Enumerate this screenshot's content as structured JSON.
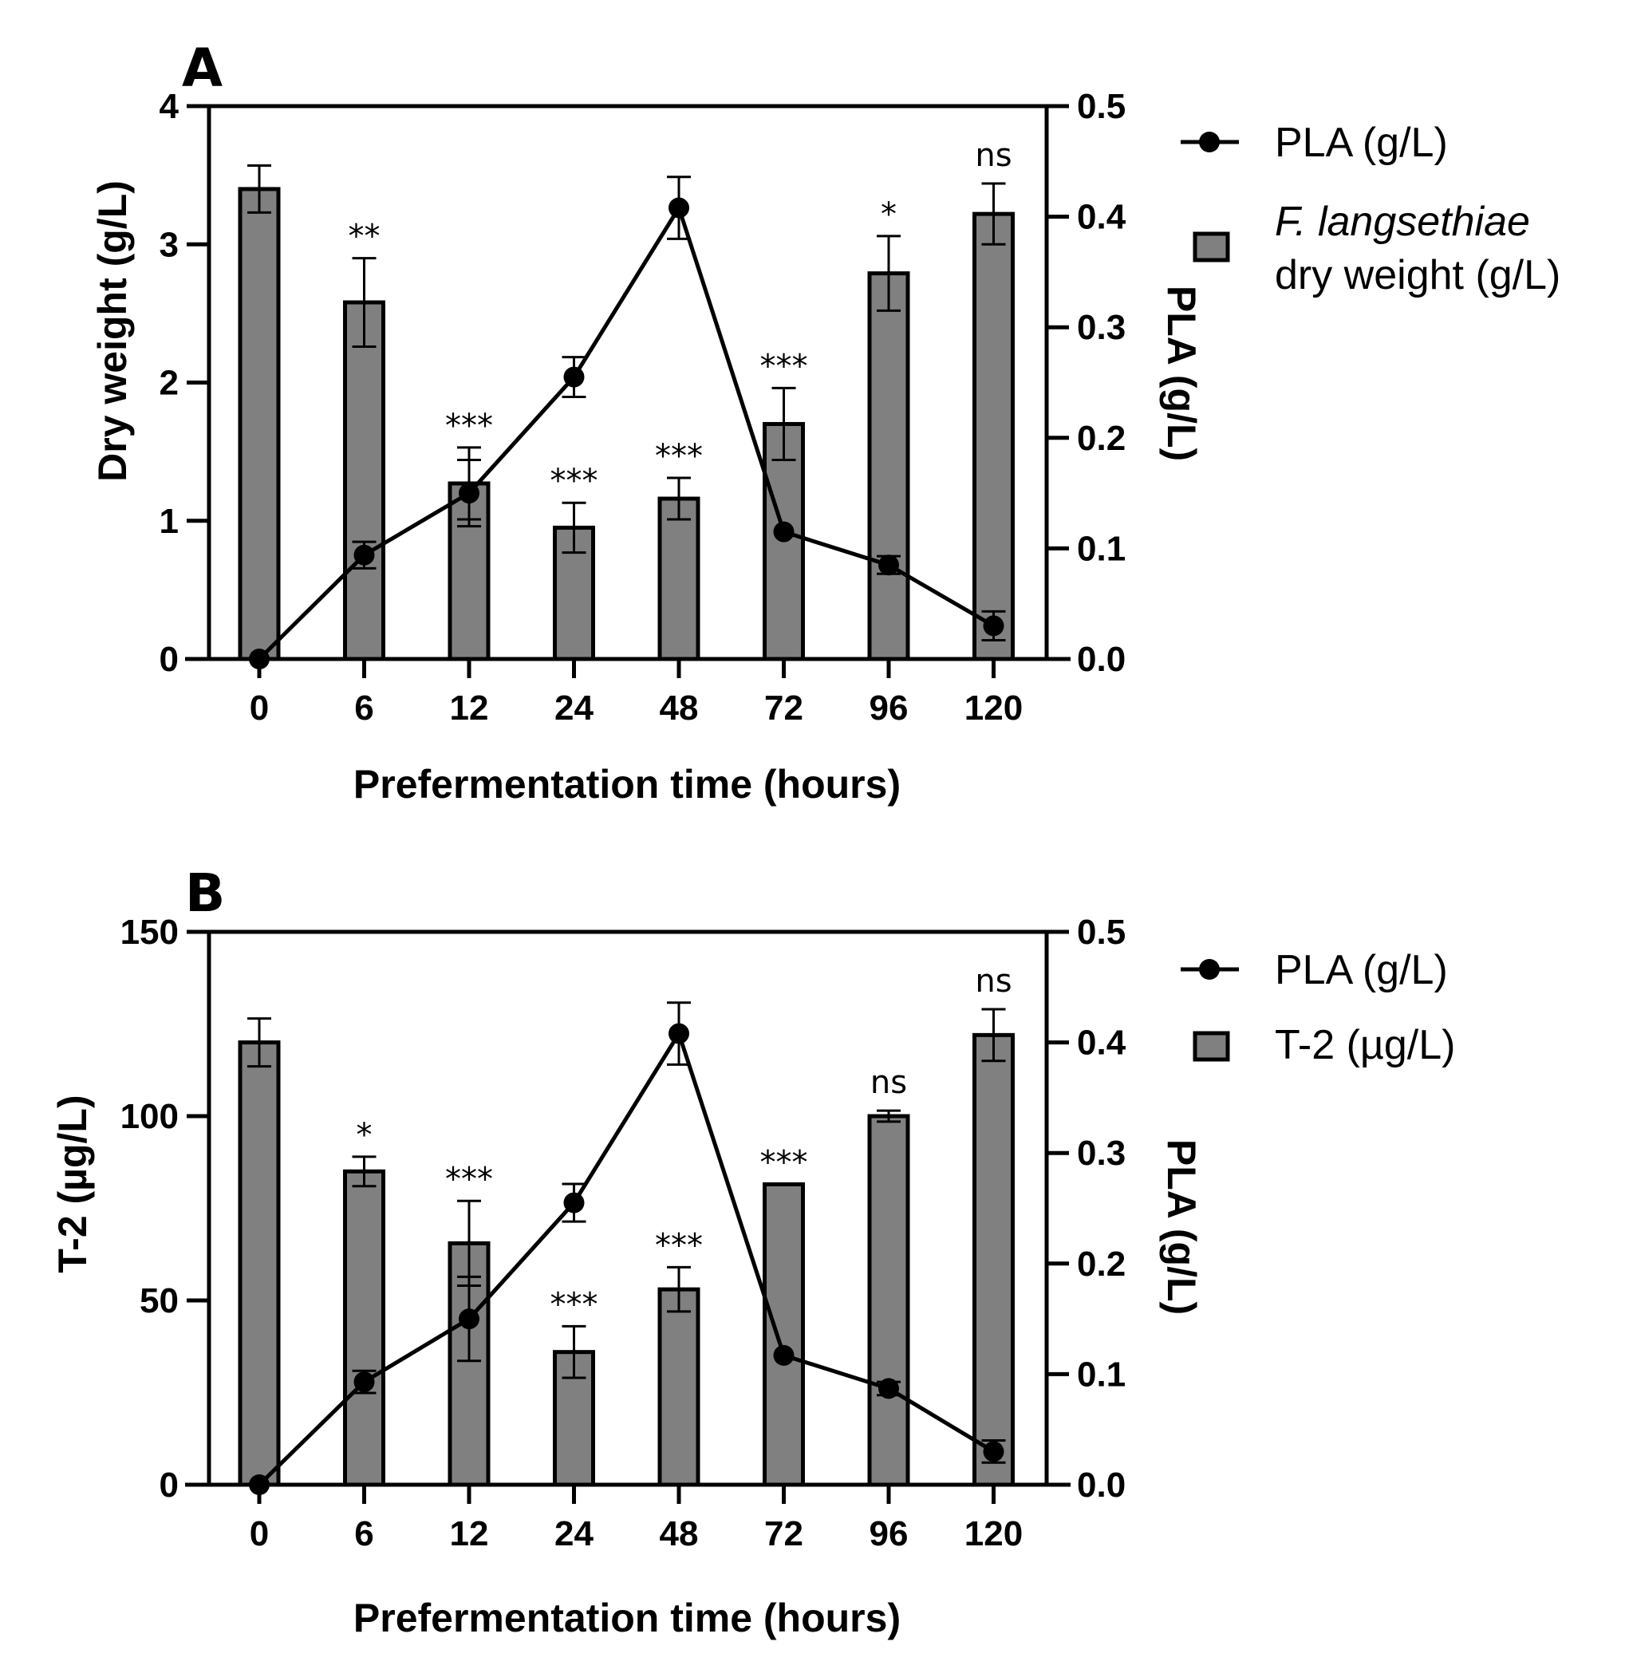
{
  "chart_data": [
    {
      "type": "bar",
      "panel_label": "A",
      "categories": [
        "0",
        "6",
        "12",
        "24",
        "48",
        "72",
        "96",
        "120"
      ],
      "xlabel": "Prefermentation time (hours)",
      "ylabel": "Dry weight (g/L)",
      "y2label": "PLA (g/L)",
      "ylim": [
        0,
        4
      ],
      "yticks": [
        "0",
        "1",
        "2",
        "3",
        "4"
      ],
      "y2lim": [
        0,
        0.5
      ],
      "y2ticks": [
        "0.0",
        "0.1",
        "0.2",
        "0.3",
        "0.4",
        "0.5"
      ],
      "series": [
        {
          "name": "F. langsethiae dry weight (g/L)",
          "kind": "bar",
          "axis": "left",
          "values": [
            3.4,
            2.58,
            1.27,
            0.95,
            1.16,
            1.7,
            2.79,
            3.22
          ],
          "errors": [
            0.17,
            0.32,
            0.26,
            0.18,
            0.15,
            0.26,
            0.27,
            0.22
          ]
        },
        {
          "name": "PLA (g/L)",
          "kind": "line",
          "axis": "right",
          "values": [
            0.0,
            0.094,
            0.15,
            0.255,
            0.408,
            0.115,
            0.085,
            0.03
          ],
          "errors": [
            0.0,
            0.012,
            0.03,
            0.018,
            0.028,
            0.0,
            0.008,
            0.013
          ]
        }
      ],
      "significance": [
        "",
        "**",
        "***",
        "***",
        "***",
        "***",
        "*",
        "ns"
      ],
      "legend": {
        "line_label": "PLA (g/L)",
        "bar_label_italic": "F. langsethiae",
        "bar_label_rest": "dry weight (g/L)"
      }
    },
    {
      "type": "bar",
      "panel_label": "B",
      "categories": [
        "0",
        "6",
        "12",
        "24",
        "48",
        "72",
        "96",
        "120"
      ],
      "xlabel": "Prefermentation time (hours)",
      "ylabel": "T-2 (µg/L)",
      "y2label": "PLA (g/L)",
      "ylim": [
        0,
        150
      ],
      "yticks": [
        "0",
        "50",
        "100",
        "150"
      ],
      "y2lim": [
        0,
        0.5
      ],
      "y2ticks": [
        "0.0",
        "0.1",
        "0.2",
        "0.3",
        "0.4",
        "0.5"
      ],
      "series": [
        {
          "name": "T-2 (µg/L)",
          "kind": "bar",
          "axis": "left",
          "values": [
            120,
            85,
            65.5,
            36,
            53,
            81.5,
            100,
            122
          ],
          "errors": [
            6.5,
            4,
            11.5,
            7,
            6,
            0,
            1.5,
            7
          ]
        },
        {
          "name": "PLA (g/L)",
          "kind": "line",
          "axis": "right",
          "values": [
            0.0,
            0.093,
            0.15,
            0.255,
            0.408,
            0.117,
            0.087,
            0.03
          ],
          "errors": [
            0.0,
            0.01,
            0.038,
            0.017,
            0.028,
            0.0,
            0.006,
            0.01
          ]
        }
      ],
      "significance": [
        "",
        "*",
        "***",
        "***",
        "***",
        "***",
        "ns",
        "ns"
      ],
      "legend": {
        "line_label": "PLA (g/L)",
        "bar_label": "T-2 (µg/L)"
      }
    }
  ]
}
